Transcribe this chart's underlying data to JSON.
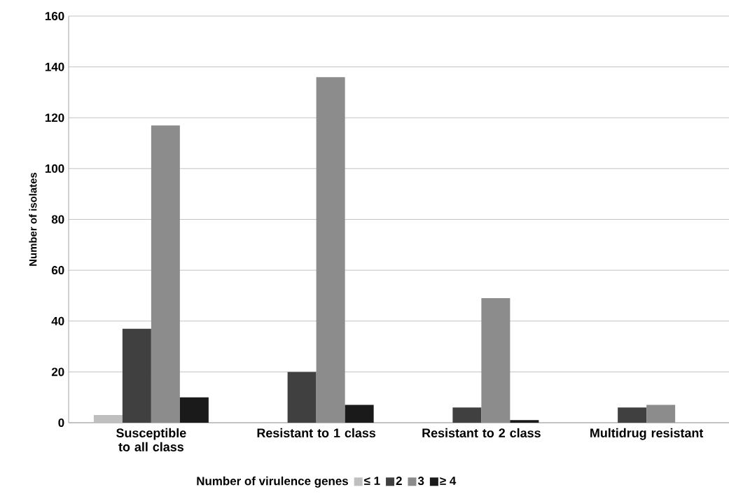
{
  "chart_data": {
    "type": "bar",
    "ylabel": "Number of isolates",
    "legend_title": "Number of virulence genes",
    "categories": [
      "Susceptible to all class",
      "Resistant to 1 class",
      "Resistant to 2 class",
      "Multidrug resistant"
    ],
    "series": [
      {
        "name": "≤ 1",
        "color": "#bfbfbf",
        "values": [
          3,
          0,
          0,
          0
        ]
      },
      {
        "name": "2",
        "color": "#404040",
        "values": [
          37,
          20,
          6,
          6
        ]
      },
      {
        "name": "3",
        "color": "#8c8c8c",
        "values": [
          117,
          136,
          49,
          7
        ]
      },
      {
        "name": "≥ 4",
        "color": "#1a1a1a",
        "values": [
          10,
          7,
          1,
          0
        ]
      }
    ],
    "ylim": [
      0,
      160
    ],
    "yticks": [
      0,
      20,
      40,
      60,
      80,
      100,
      120,
      140,
      160
    ],
    "grid": "y",
    "legend": "bottom"
  }
}
